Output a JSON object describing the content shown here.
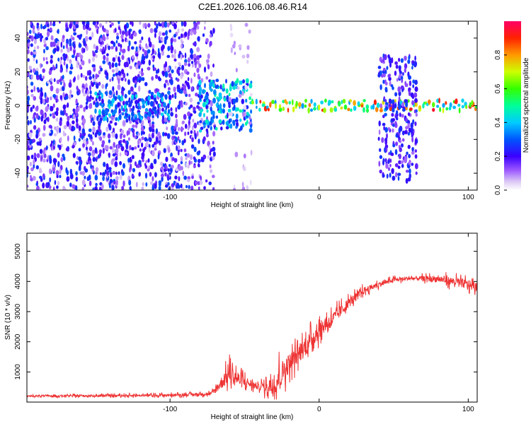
{
  "title": "C2E1.2026.106.08.46.R14",
  "chart_data": [
    {
      "type": "heatmap",
      "xlabel": "Height of straight line (km)",
      "ylabel": "Frequency (Hz)",
      "colorbar_label": "Normalized spectral amplitude",
      "xlim": [
        -196,
        106
      ],
      "ylim": [
        -50,
        50
      ],
      "x_ticks": [
        -100,
        0,
        100
      ],
      "y_ticks": [
        -40,
        -20,
        0,
        20,
        40
      ],
      "colorbar_range": [
        0,
        1
      ],
      "colorbar_ticks": [
        0.0,
        0.2,
        0.4,
        0.6,
        0.8
      ],
      "colormap": "rainbow",
      "regions": [
        {
          "x": [
            -196,
            -80
          ],
          "freq_spread": [
            -50,
            50
          ],
          "amplitude": [
            0.05,
            0.3
          ],
          "density": 0.75
        },
        {
          "x": [
            -80,
            -70
          ],
          "freq_spread": [
            -50,
            50
          ],
          "amplitude": [
            0.05,
            0.25
          ],
          "density": 0.4
        },
        {
          "x": [
            -150,
            -100
          ],
          "freq_spread": [
            -8,
            8
          ],
          "amplitude": [
            0.2,
            0.45
          ],
          "density": 0.9
        },
        {
          "x": [
            -80,
            -45
          ],
          "freq_spread": [
            -15,
            15
          ],
          "amplitude": [
            0.2,
            0.5
          ],
          "density": 0.9
        },
        {
          "x": [
            -60,
            -45
          ],
          "freq_spread": [
            -50,
            50
          ],
          "amplitude": [
            0.03,
            0.1
          ],
          "density": 0.15
        },
        {
          "x": [
            -45,
            106
          ],
          "freq_spread": [
            -3,
            3
          ],
          "amplitude": [
            0.35,
            0.95
          ],
          "density": 1.0
        },
        {
          "x": [
            40,
            65
          ],
          "freq_spread": [
            -45,
            30
          ],
          "amplitude": [
            0.1,
            0.3
          ],
          "density": 0.7
        }
      ]
    },
    {
      "type": "line",
      "xlabel": "Height of straight line (km)",
      "ylabel": "SNR (10 * v/v)",
      "xlim": [
        -196,
        106
      ],
      "ylim": [
        0,
        5600
      ],
      "x_ticks": [
        -100,
        0,
        100
      ],
      "y_ticks": [
        1000,
        2000,
        3000,
        4000,
        5000
      ],
      "color": "#ee3333",
      "envelope": {
        "x": [
          -196,
          -150,
          -100,
          -80,
          -72,
          -60,
          -52,
          -40,
          -30,
          -20,
          -10,
          0,
          10,
          20,
          30,
          40,
          50,
          60,
          70,
          80,
          90,
          100,
          106
        ],
        "mean": [
          200,
          210,
          230,
          260,
          280,
          950,
          700,
          500,
          650,
          1300,
          1800,
          2400,
          2800,
          3300,
          3700,
          3900,
          4050,
          4100,
          4100,
          4080,
          4000,
          3900,
          3800
        ],
        "noise": [
          60,
          70,
          90,
          100,
          150,
          700,
          500,
          200,
          1100,
          700,
          700,
          600,
          500,
          350,
          250,
          180,
          150,
          150,
          180,
          250,
          300,
          350,
          300
        ]
      }
    }
  ]
}
